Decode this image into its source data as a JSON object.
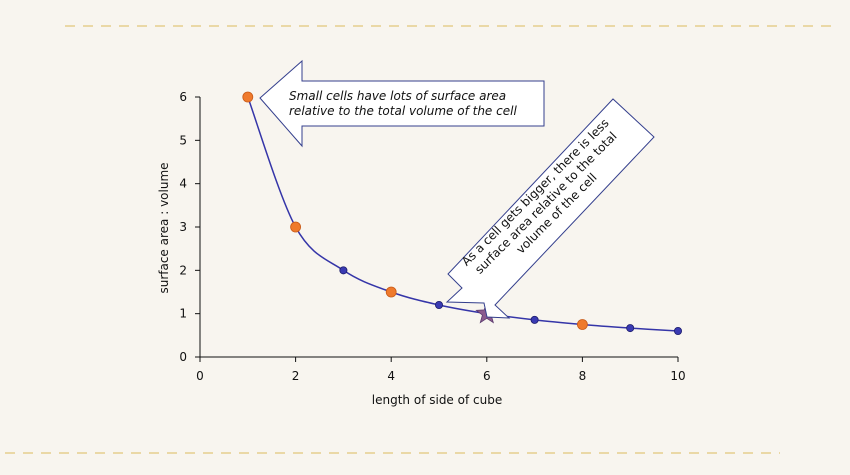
{
  "chart_data": {
    "type": "line",
    "xlabel": "length of side of cube",
    "ylabel": "surface area : volume",
    "xlim": [
      0,
      10
    ],
    "ylim": [
      0,
      6
    ],
    "xticks": [
      0,
      2,
      4,
      6,
      8,
      10
    ],
    "yticks": [
      0,
      1,
      2,
      3,
      4,
      5,
      6
    ],
    "grid": false,
    "series": [
      {
        "values": [
          {
            "x": 1,
            "y": 6,
            "marker": "orange"
          },
          {
            "x": 2,
            "y": 3,
            "marker": "orange"
          },
          {
            "x": 3,
            "y": 2,
            "marker": "blue"
          },
          {
            "x": 4,
            "y": 1.5,
            "marker": "orange"
          },
          {
            "x": 5,
            "y": 1.2,
            "marker": "blue"
          },
          {
            "x": 6,
            "y": 1,
            "marker": "star"
          },
          {
            "x": 7,
            "y": 0.857,
            "marker": "blue"
          },
          {
            "x": 8,
            "y": 0.75,
            "marker": "orange"
          },
          {
            "x": 9,
            "y": 0.667,
            "marker": "blue"
          },
          {
            "x": 10,
            "y": 0.6,
            "marker": "blue"
          }
        ]
      }
    ],
    "annotations": [
      {
        "id": "small",
        "lines": [
          "Small cells have lots of surface area",
          "relative to the total volume of the cell"
        ]
      },
      {
        "id": "big",
        "lines": [
          "As a cell gets bigger, there is less",
          "surface area relative to the total",
          "volume of the cell"
        ]
      }
    ]
  },
  "colors": {
    "background": "#f8f5ef",
    "line": "#3535a8",
    "marker_blue": "#3a3ab2",
    "marker_orange": "#ef7a2c",
    "star": "#8b5a8e",
    "dashes": "#ead8a6",
    "callout_border": "#343f8d",
    "axis": "#111111"
  }
}
